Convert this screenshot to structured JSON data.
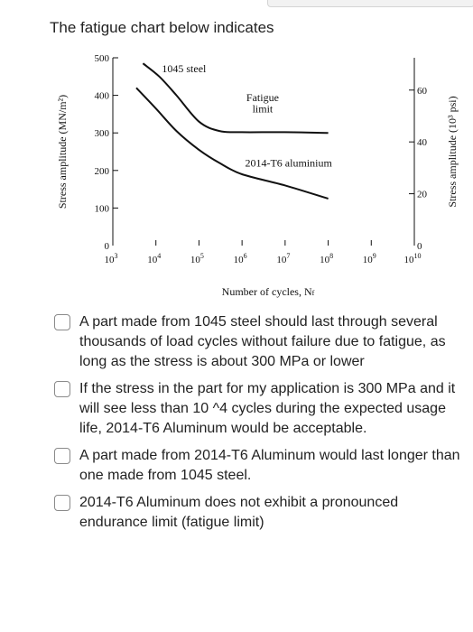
{
  "question": "The fatigue chart below indicates",
  "chart_data": {
    "type": "line",
    "title": "",
    "xlabel": "Number of cycles, N_f",
    "ylabel": "Stress amplitude (MN/m²)",
    "ylabel_right": "Stress amplitude (10³ psi)",
    "x_scale": "log",
    "xlim": [
      1000,
      10000000000
    ],
    "ylim": [
      0,
      500
    ],
    "x_ticks": [
      {
        "mant": "10",
        "exp": "3",
        "value": 1000
      },
      {
        "mant": "10",
        "exp": "4",
        "value": 10000
      },
      {
        "mant": "10",
        "exp": "5",
        "value": 100000
      },
      {
        "mant": "10",
        "exp": "6",
        "value": 1000000
      },
      {
        "mant": "10",
        "exp": "7",
        "value": 10000000
      },
      {
        "mant": "10",
        "exp": "8",
        "value": 100000000
      },
      {
        "mant": "10",
        "exp": "9",
        "value": 1000000000
      },
      {
        "mant": "10",
        "exp": "10",
        "value": 10000000000
      }
    ],
    "y_ticks": [
      {
        "label": "0",
        "value": 0
      },
      {
        "label": "100",
        "value": 100
      },
      {
        "label": "200",
        "value": 200
      },
      {
        "label": "300",
        "value": 300
      },
      {
        "label": "400",
        "value": 400
      },
      {
        "label": "500",
        "value": 500
      }
    ],
    "right_ticks": [
      {
        "label": "0",
        "value": 0
      },
      {
        "label": "20",
        "value": 138
      },
      {
        "label": "40",
        "value": 276
      },
      {
        "label": "60",
        "value": 414
      }
    ],
    "series": [
      {
        "name": "1045 steel",
        "points": [
          [
            5000,
            485
          ],
          [
            12000,
            450
          ],
          [
            30000,
            400
          ],
          [
            100000,
            330
          ],
          [
            300000,
            305
          ],
          [
            1000000,
            302
          ],
          [
            10000000,
            302
          ],
          [
            100000000,
            300
          ]
        ]
      },
      {
        "name": "2014-T6 aluminium",
        "points": [
          [
            3500,
            420
          ],
          [
            10000,
            365
          ],
          [
            30000,
            305
          ],
          [
            100000,
            255
          ],
          [
            300000,
            220
          ],
          [
            1000000,
            190
          ],
          [
            10000000,
            160
          ],
          [
            100000000,
            125
          ]
        ]
      }
    ],
    "annotations": [
      {
        "text": "1045 steel",
        "at": [
          45000,
          462
        ]
      },
      {
        "text": "Fatigue",
        "at": [
          3000000,
          385
        ]
      },
      {
        "text": "limit",
        "at": [
          3000000,
          355
        ]
      },
      {
        "text": "2014-T6 aluminium",
        "at": [
          12000000,
          210
        ]
      }
    ]
  },
  "options": [
    {
      "text": "A part made from 1045 steel should last through several thousands of load cycles without failure due to fatigue, as long as the stress is about 300 MPa or lower",
      "checked": false
    },
    {
      "text": "If the stress in the part for my application is 300 MPa and it will see less than 10 ^4 cycles during the expected usage life, 2014-T6 Aluminum would be acceptable.",
      "checked": false
    },
    {
      "text": "A part made from 2014-T6 Aluminum would last longer than one made from 1045 steel.",
      "checked": false
    },
    {
      "text": "2014-T6 Aluminum does not exhibit a pronounced endurance limit (fatigue limit)",
      "checked": false
    }
  ]
}
